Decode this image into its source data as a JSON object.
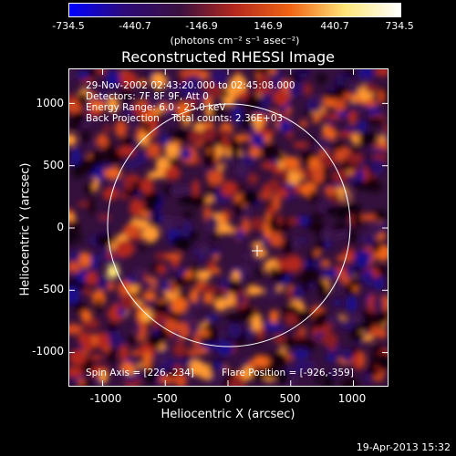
{
  "colorbar": {
    "ticks": [
      "-734.5",
      "-440.7",
      "-146.9",
      "146.9",
      "440.7",
      "734.5"
    ],
    "unit": "(photons cm⁻² s⁻¹ asec⁻²)"
  },
  "title": "Reconstructed RHESSI Image",
  "info": {
    "time": "29-Nov-2002 02:43:20.000 to 02:45:08.000",
    "detectors": "Detectors: 7F 8F 9F, Att 0",
    "energy": "Energy Range: 6.0 - 25.0 keV",
    "method": "Back Projection    Total counts: 2.36E+03",
    "spin_axis": "Spin Axis = [226,-234]",
    "flare_position": "Flare Position = [-926,-359]"
  },
  "axes": {
    "xlabel": "Heliocentric X (arcsec)",
    "ylabel": "Heliocentric Y (arcsec)",
    "yticks": [
      "1000",
      "500",
      "0",
      "-500",
      "-1000"
    ],
    "xticks": [
      "-1000",
      "-500",
      "0",
      "500",
      "1000"
    ]
  },
  "footer": "19-Apr-2013 15:32",
  "colors": {
    "background": "#000000",
    "colormap": [
      "#0000ff",
      "#2d0a78",
      "#3a1040",
      "#b4281e",
      "#f06414",
      "#ffe678",
      "#ffffff"
    ]
  }
}
